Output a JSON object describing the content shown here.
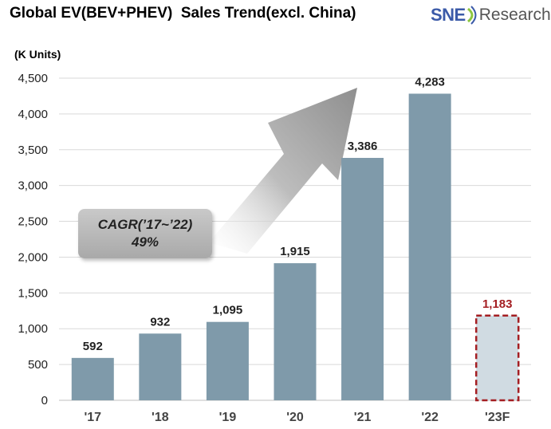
{
  "header": {
    "title": "Global EV(BEV+PHEV)  Sales Trend(excl. China)",
    "logo_sne": "SNE",
    "logo_research": "Research"
  },
  "annotation": {
    "cagr_label": "CAGR(’17~’22)",
    "cagr_value": "49%"
  },
  "colors": {
    "bar": "#7f9aaa",
    "forecast_fill": "#d0dbe2",
    "forecast_border": "#a41e22",
    "forecast_text": "#a41e22",
    "grid": "#d9d9d9",
    "arrow": "#9a9a9a"
  },
  "chart_data": {
    "type": "bar",
    "title": "Global EV(BEV+PHEV)  Sales Trend(excl. China)",
    "ylabel": "(K Units)",
    "xlabel": "",
    "categories": [
      "'17",
      "'18",
      "'19",
      "'20",
      "'21",
      "'22",
      "'23F"
    ],
    "values": [
      592,
      932,
      1095,
      1915,
      3386,
      4283,
      1183
    ],
    "value_labels": [
      "592",
      "932",
      "1,095",
      "1,915",
      "3,386",
      "4,283",
      "1,183"
    ],
    "forecast_index": 6,
    "ylim": [
      0,
      4500
    ],
    "yticks": [
      0,
      500,
      1000,
      1500,
      2000,
      2500,
      3000,
      3500,
      4000,
      4500
    ],
    "ytick_labels": [
      "0",
      "500",
      "1,000",
      "1,500",
      "2,000",
      "2,500",
      "3,000",
      "3,500",
      "4,000",
      "4,500"
    ],
    "grid": true,
    "legend": "none"
  }
}
